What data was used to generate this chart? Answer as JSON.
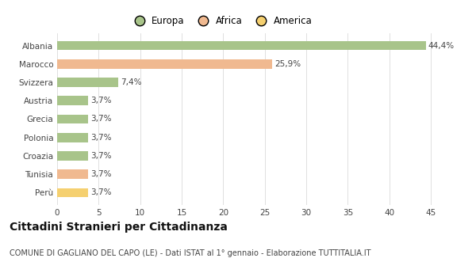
{
  "countries": [
    "Albania",
    "Marocco",
    "Svizzera",
    "Austria",
    "Grecia",
    "Polonia",
    "Croazia",
    "Tunisia",
    "Perù"
  ],
  "values": [
    44.4,
    25.9,
    7.4,
    3.7,
    3.7,
    3.7,
    3.7,
    3.7,
    3.7
  ],
  "labels": [
    "44,4%",
    "25,9%",
    "7,4%",
    "3,7%",
    "3,7%",
    "3,7%",
    "3,7%",
    "3,7%",
    "3,7%"
  ],
  "colors": [
    "#a8c48a",
    "#f0b990",
    "#a8c48a",
    "#a8c48a",
    "#a8c48a",
    "#a8c48a",
    "#a8c48a",
    "#f0b990",
    "#f5d070"
  ],
  "legend": [
    {
      "label": "Europa",
      "color": "#a8c48a"
    },
    {
      "label": "Africa",
      "color": "#f0b990"
    },
    {
      "label": "America",
      "color": "#f5d070"
    }
  ],
  "xlim": [
    0,
    47
  ],
  "xticks": [
    0,
    5,
    10,
    15,
    20,
    25,
    30,
    35,
    40,
    45
  ],
  "title": "Cittadini Stranieri per Cittadinanza",
  "subtitle": "COMUNE DI GAGLIANO DEL CAPO (LE) - Dati ISTAT al 1° gennaio - Elaborazione TUTTITALIA.IT",
  "background_color": "#ffffff",
  "grid_color": "#e0e0e0",
  "bar_height": 0.5,
  "label_fontsize": 7.5,
  "title_fontsize": 10,
  "subtitle_fontsize": 7,
  "tick_fontsize": 7.5,
  "legend_fontsize": 8.5
}
